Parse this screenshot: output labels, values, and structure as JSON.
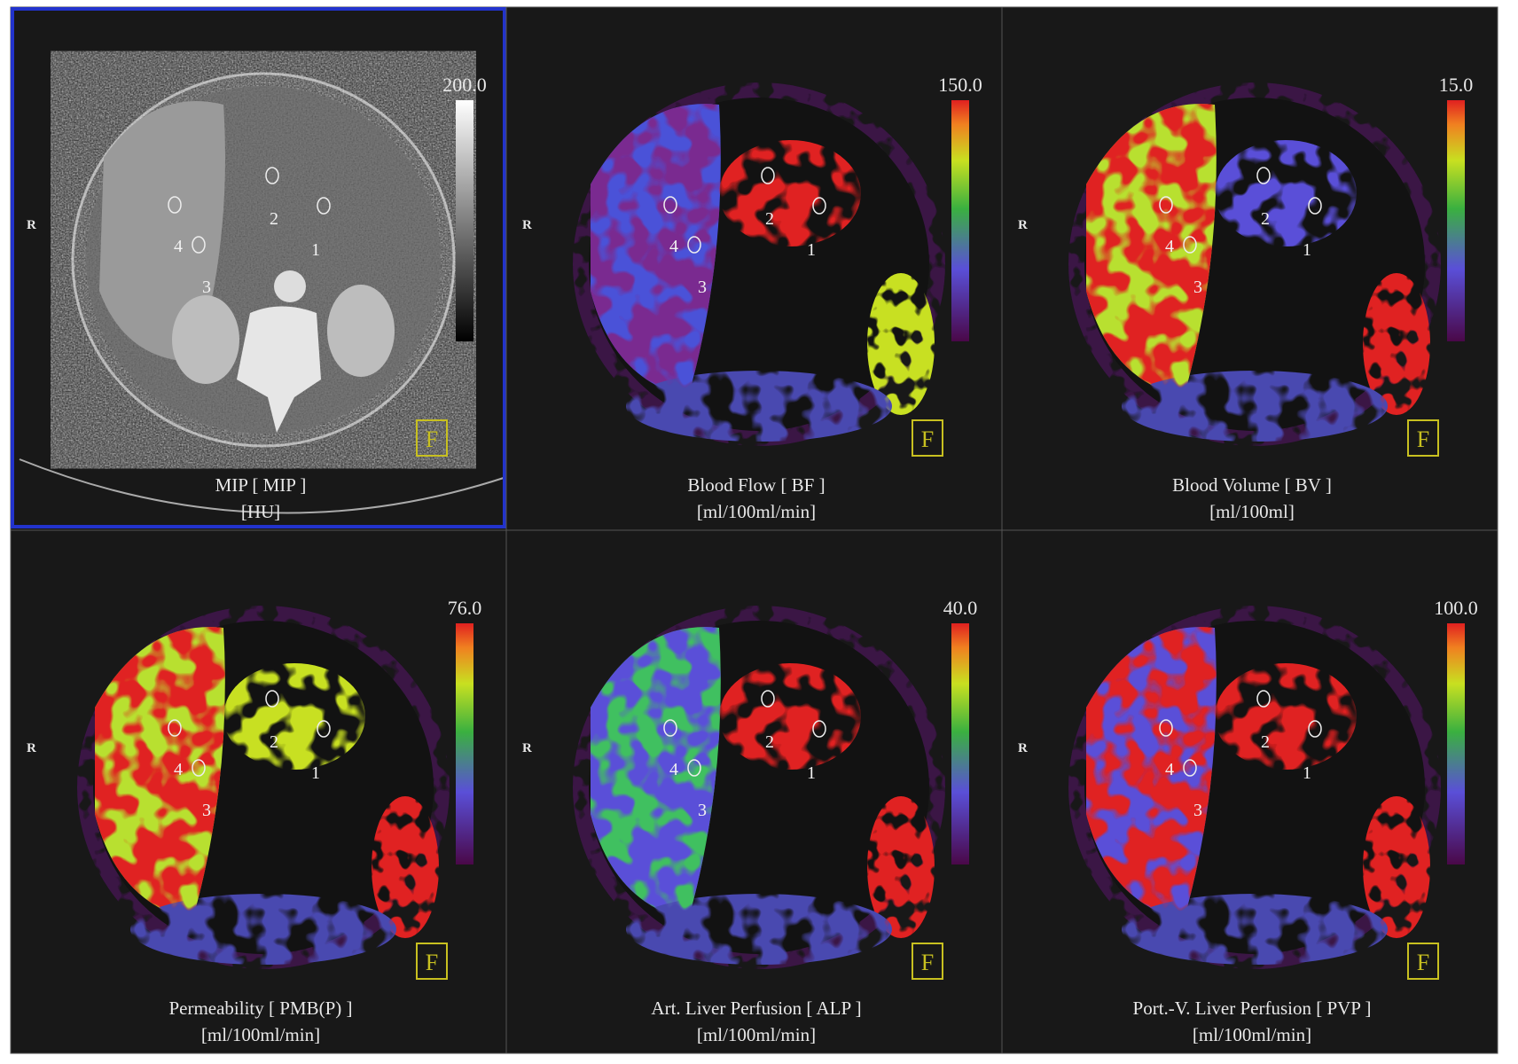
{
  "panels": [
    {
      "title": "MIP [ MIP ]",
      "unit": "[HU]",
      "scale_max": "200.0",
      "orientation": "R",
      "marker": "F",
      "rois": [
        "1",
        "2",
        "3",
        "4"
      ]
    },
    {
      "title": "Blood Flow [ BF ]",
      "unit": "[ml/100ml/min]",
      "scale_max": "150.0",
      "orientation": "R",
      "marker": "F",
      "rois": [
        "1",
        "2",
        "3",
        "4"
      ]
    },
    {
      "title": "Blood Volume [ BV ]",
      "unit": "[ml/100ml]",
      "scale_max": "15.0",
      "orientation": "R",
      "marker": "F",
      "rois": [
        "1",
        "2",
        "3",
        "4"
      ]
    },
    {
      "title": "Permeability [ PMB(P) ]",
      "unit": "[ml/100ml/min]",
      "scale_max": "76.0",
      "orientation": "R",
      "marker": "F",
      "rois": [
        "1",
        "2",
        "3",
        "4"
      ]
    },
    {
      "title": "Art. Liver Perfusion [ ALP ]",
      "unit": "[ml/100ml/min]",
      "scale_max": "40.0",
      "orientation": "R",
      "marker": "F",
      "rois": [
        "1",
        "2",
        "3",
        "4"
      ]
    },
    {
      "title": "Port.-V. Liver Perfusion [ PVP ]",
      "unit": "[ml/100ml/min]",
      "scale_max": "100.0",
      "orientation": "R",
      "marker": "F",
      "rois": [
        "1",
        "2",
        "3",
        "4"
      ]
    }
  ]
}
